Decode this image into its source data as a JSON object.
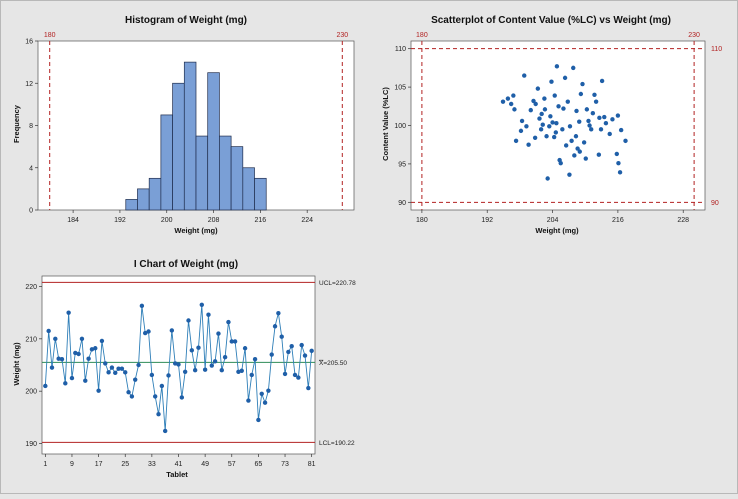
{
  "chart_data": [
    {
      "type": "bar",
      "title": "Histogram of Weight (mg)",
      "xlabel": "Weight (mg)",
      "ylabel": "Frequency",
      "xlim": [
        178,
        232
      ],
      "ylim": [
        0,
        16
      ],
      "xticks": [
        184,
        192,
        200,
        208,
        216,
        224
      ],
      "yticks": [
        0,
        4,
        8,
        12,
        16
      ],
      "bin_width": 2,
      "bins": [
        {
          "x0": 193,
          "x1": 195,
          "count": 1
        },
        {
          "x0": 195,
          "x1": 197,
          "count": 2
        },
        {
          "x0": 197,
          "x1": 199,
          "count": 3
        },
        {
          "x0": 199,
          "x1": 201,
          "count": 9
        },
        {
          "x0": 201,
          "x1": 203,
          "count": 12
        },
        {
          "x0": 203,
          "x1": 205,
          "count": 14
        },
        {
          "x0": 205,
          "x1": 207,
          "count": 7
        },
        {
          "x0": 207,
          "x1": 209,
          "count": 13
        },
        {
          "x0": 209,
          "x1": 211,
          "count": 7
        },
        {
          "x0": 211,
          "x1": 213,
          "count": 6
        },
        {
          "x0": 213,
          "x1": 215,
          "count": 4
        },
        {
          "x0": 215,
          "x1": 217,
          "count": 3
        }
      ],
      "reference_lines": [
        {
          "axis": "x",
          "value": 180,
          "label": "180"
        },
        {
          "axis": "x",
          "value": 230,
          "label": "230"
        }
      ],
      "colors": {
        "bar": "#7a9fd6",
        "bar_edge": "#1f2d4d",
        "ref": "#b22222"
      }
    },
    {
      "type": "scatter",
      "title": "Scatterplot of Content Value (%LC) vs Weight (mg)",
      "xlabel": "Weight (mg)",
      "ylabel": "Content Value (%LC)",
      "xlim": [
        178,
        232
      ],
      "ylim": [
        89,
        111
      ],
      "xticks": [
        180,
        192,
        204,
        216,
        228
      ],
      "yticks": [
        90,
        95,
        100,
        105,
        110
      ],
      "points": [
        [
          194.9,
          103.1
        ],
        [
          195.8,
          103.5
        ],
        [
          196.4,
          102.8
        ],
        [
          197.0,
          102.1
        ],
        [
          196.8,
          103.9
        ],
        [
          197.3,
          98.0
        ],
        [
          198.2,
          99.3
        ],
        [
          198.4,
          100.6
        ],
        [
          198.8,
          106.5
        ],
        [
          199.2,
          99.9
        ],
        [
          199.6,
          97.5
        ],
        [
          200.0,
          102.0
        ],
        [
          200.5,
          103.2
        ],
        [
          200.8,
          98.4
        ],
        [
          200.9,
          102.8
        ],
        [
          201.3,
          104.8
        ],
        [
          201.6,
          100.9
        ],
        [
          201.9,
          99.5
        ],
        [
          202.0,
          101.5
        ],
        [
          202.2,
          100.1
        ],
        [
          202.5,
          103.5
        ],
        [
          202.6,
          102.1
        ],
        [
          202.9,
          98.6
        ],
        [
          203.1,
          93.1
        ],
        [
          203.4,
          99.9
        ],
        [
          203.6,
          101.2
        ],
        [
          203.8,
          105.7
        ],
        [
          204.0,
          100.4
        ],
        [
          204.3,
          98.5
        ],
        [
          204.4,
          103.9
        ],
        [
          204.6,
          99.1
        ],
        [
          204.7,
          100.3
        ],
        [
          204.8,
          107.7
        ],
        [
          205.1,
          102.5
        ],
        [
          205.3,
          95.5
        ],
        [
          205.5,
          95.1
        ],
        [
          205.8,
          99.5
        ],
        [
          206.0,
          102.2
        ],
        [
          206.3,
          106.2
        ],
        [
          206.5,
          97.4
        ],
        [
          206.8,
          103.1
        ],
        [
          207.1,
          93.6
        ],
        [
          207.2,
          99.9
        ],
        [
          207.5,
          98.0
        ],
        [
          207.8,
          107.5
        ],
        [
          208.0,
          96.1
        ],
        [
          208.3,
          98.6
        ],
        [
          208.4,
          101.9
        ],
        [
          208.6,
          97.0
        ],
        [
          208.9,
          100.5
        ],
        [
          209.0,
          96.6
        ],
        [
          209.2,
          104.1
        ],
        [
          209.5,
          105.4
        ],
        [
          209.8,
          97.8
        ],
        [
          210.1,
          95.7
        ],
        [
          210.3,
          102.1
        ],
        [
          210.6,
          100.6
        ],
        [
          210.8,
          100.0
        ],
        [
          211.1,
          99.5
        ],
        [
          211.4,
          101.6
        ],
        [
          211.7,
          104.0
        ],
        [
          212.0,
          103.1
        ],
        [
          212.5,
          96.2
        ],
        [
          212.6,
          101.0
        ],
        [
          212.9,
          99.5
        ],
        [
          213.1,
          105.8
        ],
        [
          213.5,
          101.1
        ],
        [
          213.8,
          100.3
        ],
        [
          214.5,
          98.9
        ],
        [
          215.0,
          100.8
        ],
        [
          215.8,
          96.3
        ],
        [
          216.0,
          101.3
        ],
        [
          216.1,
          95.1
        ],
        [
          216.4,
          93.9
        ],
        [
          216.6,
          99.4
        ],
        [
          217.4,
          98.0
        ]
      ],
      "reference_lines": [
        {
          "axis": "x",
          "value": 180,
          "label": "180"
        },
        {
          "axis": "x",
          "value": 230,
          "label": "230"
        },
        {
          "axis": "y",
          "value": 90,
          "label": "90"
        },
        {
          "axis": "y",
          "value": 110,
          "label": "110"
        }
      ],
      "colors": {
        "point": "#1f5fa8",
        "ref": "#b22222"
      }
    },
    {
      "type": "line",
      "title": "I Chart of Weight (mg)",
      "xlabel": "Tablet",
      "ylabel": "Weight (mg)",
      "xlim": [
        0,
        82
      ],
      "ylim": [
        188,
        222
      ],
      "xticks": [
        1,
        9,
        17,
        25,
        33,
        41,
        49,
        57,
        65,
        73,
        81
      ],
      "yticks": [
        190,
        200,
        210,
        220
      ],
      "ucl": 220.78,
      "center": 205.5,
      "lcl": 190.22,
      "ucl_label": "UCL=220.78",
      "center_label_bar": "X",
      "center_label_rest": "=205.50",
      "lcl_label": "LCL=190.22",
      "values": [
        201,
        211.5,
        204.5,
        210,
        206.2,
        206.1,
        201.5,
        215,
        202.5,
        207.3,
        207.1,
        210,
        202,
        206.2,
        208,
        208.2,
        200.1,
        209.6,
        205.3,
        203.6,
        204.5,
        203.5,
        204.3,
        204.3,
        203.6,
        199.8,
        199,
        202.2,
        205,
        216.3,
        211.1,
        211.4,
        203.1,
        199,
        195.6,
        201,
        192.4,
        203,
        211.6,
        205.3,
        205.1,
        198.8,
        203.7,
        213.5,
        207.8,
        204,
        208.3,
        216.5,
        204.1,
        214.6,
        204.9,
        205.7,
        211,
        204,
        206.5,
        213.2,
        209.5,
        209.5,
        203.7,
        203.9,
        208.2,
        198.2,
        203.1,
        206.1,
        194.5,
        199.5,
        197.8,
        200.1,
        207,
        212.4,
        214.9,
        210.4,
        203.3,
        207.5,
        208.6,
        203.1,
        202.6,
        208.8,
        206.8,
        200.6,
        207.7
      ],
      "colors": {
        "line": "#2f7fb8",
        "point": "#1f5fa8",
        "limit": "#b22222",
        "center": "#2e8b57"
      }
    }
  ]
}
